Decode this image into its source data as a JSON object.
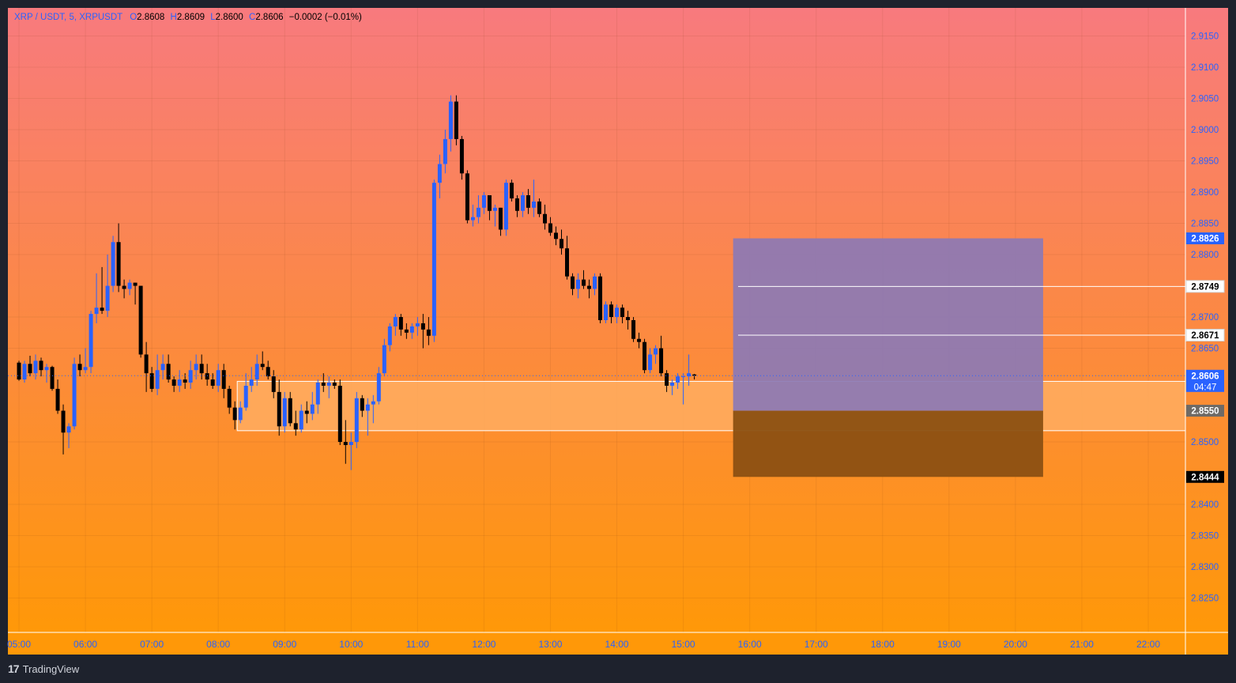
{
  "header": {
    "symbol": "XRP / USDT, 5, XRPUSDT",
    "ohlc": [
      {
        "k": "O",
        "v": "2.8608"
      },
      {
        "k": "H",
        "v": "2.8609"
      },
      {
        "k": "L",
        "v": "2.8600"
      },
      {
        "k": "C",
        "v": "2.8606"
      }
    ],
    "change": "−0.0002 (−0.01%)"
  },
  "footer": {
    "brand": "TradingView"
  },
  "colors": {
    "bg_top": "#f87a7e",
    "bg_bottom": "#ff9808",
    "up": "#2962ff",
    "down": "#000000",
    "frame": "#1e222d",
    "zone": "#ffad60",
    "profit_box": "#8c79b5",
    "loss_box": "#8c5012"
  },
  "chart_data": {
    "type": "candlestick",
    "y_axis": {
      "range": [
        2.8195,
        2.9195
      ],
      "ticks": [
        "2.8250",
        "2.8300",
        "2.8350",
        "2.8400",
        "2.8500",
        "2.8650",
        "2.8700",
        "2.8800",
        "2.8850",
        "2.8900",
        "2.8950",
        "2.9000",
        "2.9050",
        "2.9100",
        "2.9150"
      ],
      "tick_values": [
        2.825,
        2.83,
        2.835,
        2.84,
        2.85,
        2.865,
        2.87,
        2.88,
        2.885,
        2.89,
        2.895,
        2.9,
        2.905,
        2.91,
        2.915
      ]
    },
    "x_axis": {
      "labels": [
        "05:00",
        "06:00",
        "07:00",
        "08:00",
        "09:00",
        "10:00",
        "11:00",
        "12:00",
        "13:00",
        "14:00",
        "15:00",
        "16:00",
        "17:00",
        "18:00",
        "19:00",
        "20:00",
        "21:00",
        "22:00"
      ],
      "start_time": "05:00",
      "interval_minutes": 5
    },
    "candles": [
      [
        2.8627,
        2.863,
        2.8598,
        2.86
      ],
      [
        2.86,
        2.863,
        2.8595,
        2.8625
      ],
      [
        2.8625,
        2.8638,
        2.8605,
        2.861
      ],
      [
        2.861,
        2.864,
        2.86,
        2.863
      ],
      [
        2.863,
        2.8635,
        2.8605,
        2.8615
      ],
      [
        2.8615,
        2.8625,
        2.8595,
        2.862
      ],
      [
        2.862,
        2.8622,
        2.8582,
        2.8585
      ],
      [
        2.8585,
        2.86,
        2.8545,
        2.855
      ],
      [
        2.855,
        2.856,
        2.848,
        2.8515
      ],
      [
        2.8515,
        2.853,
        2.849,
        2.8525
      ],
      [
        2.8525,
        2.8635,
        2.852,
        2.8625
      ],
      [
        2.8625,
        2.864,
        2.8605,
        2.8615
      ],
      [
        2.8615,
        2.865,
        2.861,
        2.862
      ],
      [
        2.862,
        2.871,
        2.861,
        2.8705
      ],
      [
        2.8705,
        2.877,
        2.869,
        2.8715
      ],
      [
        2.8715,
        2.878,
        2.8705,
        2.871
      ],
      [
        2.871,
        2.88,
        2.87,
        2.875
      ],
      [
        2.875,
        2.883,
        2.874,
        2.882
      ],
      [
        2.882,
        2.885,
        2.874,
        2.875
      ],
      [
        2.875,
        2.876,
        2.873,
        2.8745
      ],
      [
        2.8745,
        2.876,
        2.8735,
        2.8755
      ],
      [
        2.8755,
        2.8755,
        2.872,
        2.875
      ],
      [
        2.875,
        2.875,
        2.8635,
        2.864
      ],
      [
        2.864,
        2.866,
        2.858,
        2.861
      ],
      [
        2.861,
        2.862,
        2.858,
        2.8585
      ],
      [
        2.8585,
        2.864,
        2.8575,
        2.8615
      ],
      [
        2.8615,
        2.864,
        2.86,
        2.8625
      ],
      [
        2.8625,
        2.864,
        2.8595,
        2.86
      ],
      [
        2.86,
        2.8605,
        2.858,
        2.859
      ],
      [
        2.859,
        2.8615,
        2.858,
        2.86
      ],
      [
        2.86,
        2.861,
        2.8585,
        2.8595
      ],
      [
        2.8595,
        2.863,
        2.8585,
        2.8615
      ],
      [
        2.8615,
        2.864,
        2.86,
        2.8625
      ],
      [
        2.8625,
        2.864,
        2.86,
        2.861
      ],
      [
        2.861,
        2.8625,
        2.859,
        2.86
      ],
      [
        2.86,
        2.861,
        2.8585,
        2.859
      ],
      [
        2.859,
        2.8625,
        2.858,
        2.8615
      ],
      [
        2.8615,
        2.8625,
        2.857,
        2.8585
      ],
      [
        2.8585,
        2.859,
        2.8545,
        2.8555
      ],
      [
        2.8555,
        2.8565,
        2.852,
        2.8535
      ],
      [
        2.8535,
        2.8565,
        2.853,
        2.8555
      ],
      [
        2.8555,
        2.861,
        2.855,
        2.859
      ],
      [
        2.859,
        2.862,
        2.858,
        2.86
      ],
      [
        2.86,
        2.864,
        2.859,
        2.8625
      ],
      [
        2.8625,
        2.8645,
        2.8615,
        2.862
      ],
      [
        2.862,
        2.863,
        2.86,
        2.8605
      ],
      [
        2.8605,
        2.8615,
        2.857,
        2.858
      ],
      [
        2.858,
        2.86,
        2.851,
        2.8525
      ],
      [
        2.8525,
        2.858,
        2.8515,
        2.857
      ],
      [
        2.857,
        2.858,
        2.8525,
        2.853
      ],
      [
        2.853,
        2.855,
        2.851,
        2.852
      ],
      [
        2.852,
        2.856,
        2.8515,
        2.855
      ],
      [
        2.855,
        2.8565,
        2.853,
        2.8545
      ],
      [
        2.8545,
        2.858,
        2.8535,
        2.856
      ],
      [
        2.856,
        2.86,
        2.8545,
        2.8595
      ],
      [
        2.8595,
        2.861,
        2.858,
        2.859
      ],
      [
        2.859,
        2.8605,
        2.857,
        2.8595
      ],
      [
        2.8595,
        2.86,
        2.8585,
        2.859
      ],
      [
        2.859,
        2.86,
        2.8495,
        2.85
      ],
      [
        2.85,
        2.8535,
        2.8465,
        2.8495
      ],
      [
        2.8495,
        2.8515,
        2.8455,
        2.85
      ],
      [
        2.85,
        2.858,
        2.849,
        2.857
      ],
      [
        2.857,
        2.8575,
        2.854,
        2.855
      ],
      [
        2.855,
        2.857,
        2.851,
        2.856
      ],
      [
        2.856,
        2.8575,
        2.853,
        2.8565
      ],
      [
        2.8565,
        2.862,
        2.856,
        2.861
      ],
      [
        2.861,
        2.8665,
        2.8605,
        2.8655
      ],
      [
        2.8655,
        2.869,
        2.8645,
        2.8685
      ],
      [
        2.8685,
        2.8705,
        2.867,
        2.87
      ],
      [
        2.87,
        2.8705,
        2.867,
        2.868
      ],
      [
        2.868,
        2.869,
        2.8665,
        2.8675
      ],
      [
        2.8675,
        2.869,
        2.8665,
        2.8685
      ],
      [
        2.8685,
        2.87,
        2.867,
        2.869
      ],
      [
        2.869,
        2.8705,
        2.865,
        2.868
      ],
      [
        2.868,
        2.87,
        2.8655,
        2.867
      ],
      [
        2.867,
        2.892,
        2.866,
        2.8915
      ],
      [
        2.8915,
        2.896,
        2.889,
        2.8945
      ],
      [
        2.8945,
        2.9,
        2.893,
        2.8985
      ],
      [
        2.8985,
        2.9055,
        2.8965,
        2.9045
      ],
      [
        2.9045,
        2.9055,
        2.8975,
        2.8985
      ],
      [
        2.8985,
        2.899,
        2.892,
        2.893
      ],
      [
        2.893,
        2.8935,
        2.885,
        2.8855
      ],
      [
        2.8855,
        2.888,
        2.8845,
        2.886
      ],
      [
        2.886,
        2.8895,
        2.885,
        2.8875
      ],
      [
        2.8875,
        2.89,
        2.8865,
        2.8895
      ],
      [
        2.8895,
        2.8895,
        2.8855,
        2.887
      ],
      [
        2.887,
        2.888,
        2.8845,
        2.8875
      ],
      [
        2.8875,
        2.8875,
        2.883,
        2.884
      ],
      [
        2.884,
        2.892,
        2.883,
        2.8915
      ],
      [
        2.8915,
        2.892,
        2.8885,
        2.889
      ],
      [
        2.889,
        2.8895,
        2.886,
        2.887
      ],
      [
        2.887,
        2.89,
        2.886,
        2.8895
      ],
      [
        2.8895,
        2.8905,
        2.8865,
        2.8875
      ],
      [
        2.8875,
        2.892,
        2.886,
        2.8885
      ],
      [
        2.8885,
        2.889,
        2.886,
        2.8865
      ],
      [
        2.8865,
        2.888,
        2.884,
        2.885
      ],
      [
        2.885,
        2.886,
        2.883,
        2.8835
      ],
      [
        2.8835,
        2.8845,
        2.8815,
        2.8825
      ],
      [
        2.8825,
        2.884,
        2.88,
        2.881
      ],
      [
        2.881,
        2.883,
        2.876,
        2.8765
      ],
      [
        2.8765,
        2.877,
        2.8735,
        2.8745
      ],
      [
        2.8745,
        2.877,
        2.873,
        2.876
      ],
      [
        2.876,
        2.8775,
        2.8745,
        2.875
      ],
      [
        2.875,
        2.876,
        2.873,
        2.8745
      ],
      [
        2.8745,
        2.877,
        2.8735,
        2.8765
      ],
      [
        2.8765,
        2.877,
        2.869,
        2.8695
      ],
      [
        2.8695,
        2.8725,
        2.869,
        2.872
      ],
      [
        2.872,
        2.8725,
        2.869,
        2.87
      ],
      [
        2.87,
        2.872,
        2.869,
        2.8715
      ],
      [
        2.8715,
        2.872,
        2.869,
        2.87
      ],
      [
        2.87,
        2.871,
        2.868,
        2.8695
      ],
      [
        2.8695,
        2.87,
        2.866,
        2.8665
      ],
      [
        2.8665,
        2.8675,
        2.865,
        2.866
      ],
      [
        2.866,
        2.8665,
        2.861,
        2.8615
      ],
      [
        2.8615,
        2.865,
        2.861,
        2.864
      ],
      [
        2.864,
        2.8655,
        2.8625,
        2.865
      ],
      [
        2.865,
        2.867,
        2.8605,
        2.861
      ],
      [
        2.861,
        2.8615,
        2.858,
        2.859
      ],
      [
        2.859,
        2.86,
        2.8575,
        2.8595
      ],
      [
        2.8595,
        2.861,
        2.8585,
        2.8605
      ],
      [
        2.8605,
        2.861,
        2.856,
        2.8605
      ],
      [
        2.8605,
        2.864,
        2.859,
        2.861
      ],
      [
        2.8608,
        2.8609,
        2.86,
        2.8606
      ]
    ],
    "current_price": {
      "value": 2.8606,
      "label": "2.8606",
      "countdown": "04:47"
    },
    "zone": {
      "start_index": 40,
      "top": 2.8597,
      "bottom": 2.8518
    },
    "position": {
      "start_label": "15:45",
      "end_label": "20:25",
      "take_profit": 2.8826,
      "entry": 2.855,
      "stop": 2.8444,
      "labels": {
        "take_profit": "2.8826",
        "entry": "2.8550",
        "stop": "2.8444"
      }
    },
    "levels": [
      {
        "value": 2.8749,
        "label": "2.8749"
      },
      {
        "value": 2.8671,
        "label": "2.8671"
      }
    ]
  }
}
